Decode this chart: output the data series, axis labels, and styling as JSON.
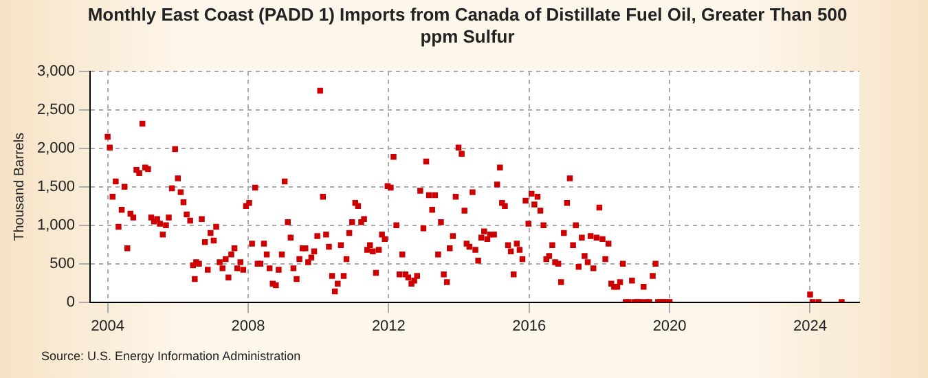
{
  "chart_data": {
    "type": "scatter",
    "title": "Monthly East Coast (PADD 1) Imports from Canada of Distillate Fuel Oil, Greater Than 500 ppm Sulfur",
    "ylabel": "Thousand Barrels",
    "annotations": [
      "Source: U.S. Energy Information Administration"
    ],
    "x": [
      2004.0,
      2004.06,
      2004.14,
      2004.23,
      2004.31,
      2004.4,
      2004.48,
      2004.56,
      2004.65,
      2004.73,
      2004.82,
      2004.9,
      2004.99,
      2005.07,
      2005.15,
      2005.24,
      2005.32,
      2005.41,
      2005.49,
      2005.57,
      2005.66,
      2005.74,
      2005.83,
      2005.92,
      2006.0,
      2006.08,
      2006.16,
      2006.25,
      2006.35,
      2006.43,
      2006.48,
      2006.52,
      2006.6,
      2006.68,
      2006.77,
      2006.85,
      2006.93,
      2007.02,
      2007.09,
      2007.19,
      2007.27,
      2007.36,
      2007.44,
      2007.52,
      2007.61,
      2007.69,
      2007.78,
      2007.86,
      2007.94,
      2008.03,
      2008.11,
      2008.2,
      2008.27,
      2008.35,
      2008.45,
      2008.53,
      2008.61,
      2008.7,
      2008.79,
      2008.87,
      2008.96,
      2009.04,
      2009.13,
      2009.21,
      2009.29,
      2009.38,
      2009.46,
      2009.55,
      2009.63,
      2009.71,
      2009.8,
      2009.88,
      2009.97,
      2010.05,
      2010.13,
      2010.22,
      2010.3,
      2010.39,
      2010.47,
      2010.55,
      2010.64,
      2010.72,
      2010.8,
      2010.88,
      2010.96,
      2011.05,
      2011.13,
      2011.22,
      2011.3,
      2011.39,
      2011.47,
      2011.55,
      2011.64,
      2011.72,
      2011.81,
      2011.89,
      2011.97,
      2012.06,
      2012.14,
      2012.22,
      2012.31,
      2012.39,
      2012.48,
      2012.56,
      2012.65,
      2012.73,
      2012.81,
      2012.9,
      2012.99,
      2013.07,
      2013.15,
      2013.24,
      2013.32,
      2013.41,
      2013.49,
      2013.57,
      2013.66,
      2013.74,
      2013.83,
      2013.91,
      2013.99,
      2014.08,
      2014.16,
      2014.22,
      2014.3,
      2014.39,
      2014.47,
      2014.55,
      2014.64,
      2014.72,
      2014.81,
      2014.89,
      2015.0,
      2015.09,
      2015.17,
      2015.23,
      2015.31,
      2015.4,
      2015.48,
      2015.56,
      2015.65,
      2015.73,
      2015.81,
      2015.9,
      2015.98,
      2016.07,
      2016.15,
      2016.24,
      2016.32,
      2016.41,
      2016.49,
      2016.57,
      2016.66,
      2016.74,
      2016.83,
      2016.91,
      2016.99,
      2017.08,
      2017.16,
      2017.25,
      2017.33,
      2017.41,
      2017.5,
      2017.58,
      2017.67,
      2017.75,
      2017.83,
      2017.92,
      2018.0,
      2018.09,
      2018.17,
      2018.26,
      2018.34,
      2018.42,
      2018.51,
      2018.59,
      2018.67,
      2018.75,
      2018.83,
      2018.93,
      2019.0,
      2019.08,
      2019.17,
      2019.26,
      2019.33,
      2019.42,
      2019.52,
      2019.6,
      2019.67,
      2019.75,
      2019.83,
      2019.92,
      2020.0,
      2024.0,
      2024.07,
      2024.24,
      2024.9
    ],
    "series": [
      {
        "color": "#cc0000",
        "values": [
          2150,
          2010,
          1370,
          1570,
          980,
          1200,
          1500,
          700,
          1150,
          1100,
          1720,
          1680,
          2320,
          1750,
          1730,
          1100,
          1050,
          1080,
          1020,
          880,
          1000,
          1100,
          1480,
          1990,
          1610,
          1430,
          1300,
          1140,
          1060,
          480,
          300,
          520,
          500,
          1080,
          780,
          420,
          900,
          800,
          980,
          520,
          440,
          560,
          320,
          620,
          700,
          440,
          520,
          420,
          1250,
          1290,
          760,
          1490,
          500,
          500,
          760,
          620,
          440,
          240,
          220,
          420,
          620,
          1570,
          1040,
          840,
          440,
          300,
          560,
          700,
          700,
          520,
          580,
          660,
          860,
          2750,
          1370,
          880,
          720,
          340,
          140,
          240,
          740,
          340,
          560,
          900,
          1040,
          1290,
          1250,
          1040,
          1080,
          680,
          740,
          660,
          380,
          680,
          880,
          820,
          1510,
          1490,
          1890,
          1000,
          360,
          620,
          360,
          320,
          240,
          280,
          340,
          1450,
          960,
          1830,
          1390,
          1200,
          1390,
          620,
          1040,
          360,
          260,
          700,
          860,
          1370,
          2010,
          1930,
          1190,
          760,
          720,
          1430,
          680,
          540,
          840,
          920,
          820,
          880,
          880,
          1530,
          1750,
          1290,
          1250,
          740,
          660,
          360,
          760,
          680,
          560,
          1320,
          1020,
          1410,
          1270,
          1370,
          1190,
          1000,
          560,
          600,
          740,
          520,
          500,
          260,
          900,
          1290,
          1610,
          740,
          1000,
          460,
          840,
          600,
          520,
          860,
          440,
          840,
          1230,
          820,
          560,
          760,
          240,
          200,
          200,
          260,
          500,
          0,
          0,
          280,
          0,
          0,
          0,
          200,
          0,
          0,
          340,
          500,
          0,
          0,
          0,
          0,
          0,
          100,
          0,
          0,
          0
        ]
      }
    ],
    "xlim": [
      2003.5,
      2025.4
    ],
    "xticks": [
      2004,
      2008,
      2012,
      2016,
      2020,
      2024
    ],
    "ylim": [
      0,
      3000
    ],
    "yticks": [
      0,
      500,
      {
        "value": 1000,
        "label": "1,000"
      },
      {
        "value": 1500,
        "label": "1,500"
      },
      {
        "value": 2000,
        "label": "2,000"
      },
      {
        "value": 2500,
        "label": "2,500"
      },
      {
        "value": 3000,
        "label": "3,000"
      }
    ],
    "grid": true,
    "legend": false,
    "marker": "square"
  }
}
